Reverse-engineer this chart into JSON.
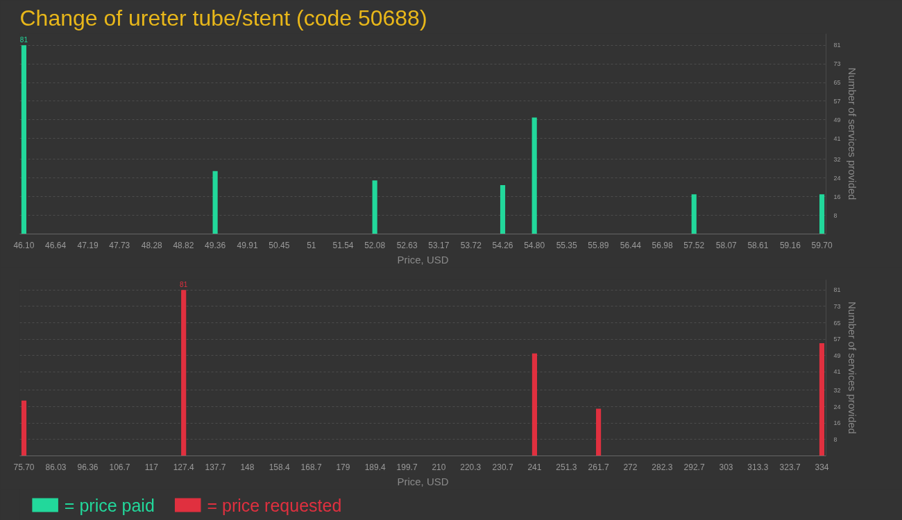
{
  "chart_data": [
    {
      "type": "bar",
      "title": "Change of ureter tube/stent (code 50688)",
      "xlabel": "Price, USD",
      "ylabel": "Number of services provided",
      "x": [
        46.1,
        49.36,
        52.08,
        54.26,
        54.8,
        57.52,
        59.7
      ],
      "series": [
        {
          "name": "= price paid",
          "color": "#22d89b",
          "values": [
            81,
            27,
            23,
            21,
            50,
            17,
            17
          ],
          "value_labels": [
            "81",
            null,
            null,
            null,
            null,
            null,
            null
          ]
        }
      ],
      "xlim": [
        46.03,
        59.77
      ],
      "ylim": [
        0,
        86
      ],
      "xticks": [
        {
          "value": 46.1,
          "label": "46.10"
        },
        46.64,
        47.19,
        47.73,
        48.28,
        48.82,
        49.36,
        49.91,
        50.45,
        51,
        51.54,
        52.08,
        52.63,
        53.17,
        53.72,
        54.26,
        {
          "value": 54.8,
          "label": "54.80"
        },
        55.35,
        55.89,
        56.44,
        56.98,
        57.52,
        58.07,
        58.61,
        59.16,
        {
          "value": 59.7,
          "label": "59.70"
        }
      ],
      "yticks": [
        8,
        16,
        24,
        32,
        41,
        49,
        57,
        65,
        73,
        81
      ],
      "grid": "y",
      "legend": "bottom"
    },
    {
      "type": "bar",
      "xlabel": "Price, USD",
      "ylabel": "Number of services provided",
      "x": [
        75.7,
        127.4,
        241,
        261.7,
        334
      ],
      "series": [
        {
          "name": "= price requested",
          "color": "#e0303f",
          "values": [
            27,
            81,
            50,
            23,
            55
          ],
          "value_labels": [
            null,
            "81",
            null,
            null,
            null
          ]
        }
      ],
      "xlim": [
        74.35,
        335.35
      ],
      "ylim": [
        0,
        86
      ],
      "xticks": [
        {
          "value": 75.7,
          "label": "75.70"
        },
        86.03,
        96.36,
        106.7,
        117,
        127.4,
        137.7,
        148,
        158.4,
        168.7,
        179,
        189.4,
        199.7,
        210,
        220.3,
        230.7,
        241,
        251.3,
        261.7,
        272,
        282.3,
        292.7,
        303,
        313.3,
        323.7,
        334
      ],
      "yticks": [
        8,
        16,
        24,
        32,
        41,
        49,
        57,
        65,
        73,
        81
      ],
      "grid": "y",
      "legend": "bottom"
    }
  ]
}
